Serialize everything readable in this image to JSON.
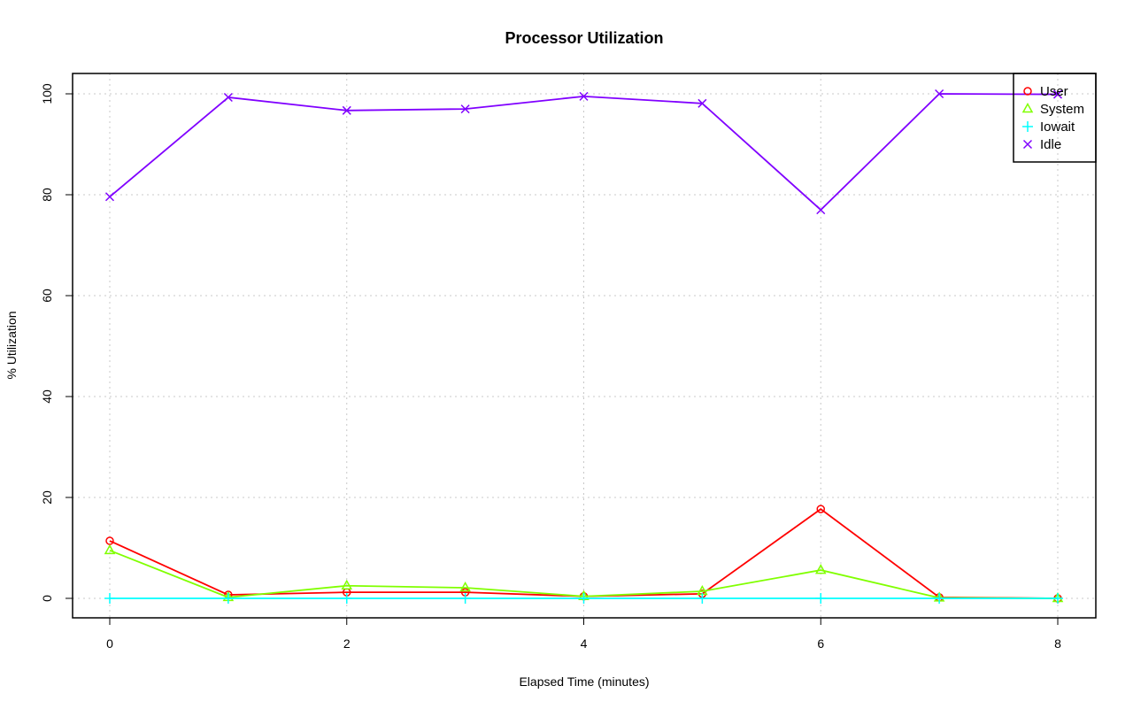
{
  "chart_data": {
    "type": "line",
    "title": "Processor Utilization",
    "xlabel": "Elapsed Time (minutes)",
    "ylabel": "% Utilization",
    "x": [
      0,
      1,
      2,
      3,
      4,
      5,
      6,
      7,
      8
    ],
    "xlim": [
      0,
      8
    ],
    "ylim": [
      0,
      100
    ],
    "xticks": [
      0,
      2,
      4,
      6,
      8
    ],
    "yticks": [
      0,
      20,
      40,
      60,
      80,
      100
    ],
    "grid": true,
    "legend_position": "top-right",
    "series": [
      {
        "name": "User",
        "color": "#ff0000",
        "marker": "circle",
        "values": [
          11.4,
          0.7,
          1.2,
          1.2,
          0.4,
          0.9,
          17.7,
          0.2,
          0.0
        ]
      },
      {
        "name": "System",
        "color": "#80ff00",
        "marker": "triangle",
        "values": [
          9.5,
          0.2,
          2.5,
          2.1,
          0.4,
          1.4,
          5.6,
          0.1,
          0.0
        ]
      },
      {
        "name": "Iowait",
        "color": "#00ffff",
        "marker": "plus",
        "values": [
          0,
          0,
          0,
          0,
          0,
          0,
          0,
          0,
          0
        ]
      },
      {
        "name": "Idle",
        "color": "#8000ff",
        "marker": "cross",
        "values": [
          79.6,
          99.3,
          96.7,
          97.0,
          99.5,
          98.1,
          77.0,
          100.0,
          99.9
        ]
      }
    ]
  }
}
